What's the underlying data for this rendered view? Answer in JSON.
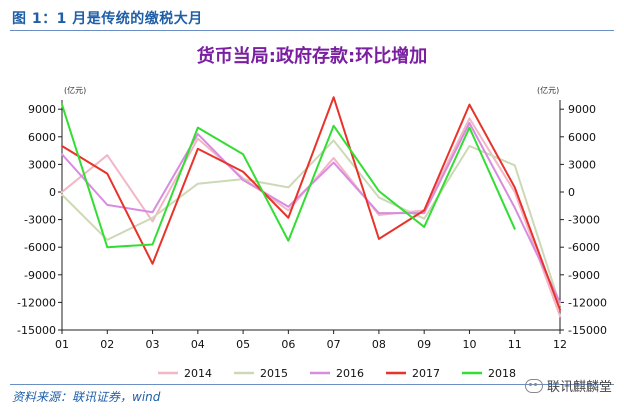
{
  "figure": {
    "caption": "图 1：1 月是传统的缴税大月",
    "source": "资料来源：联讯证券，wind",
    "watermark": "联讯麒麟堂"
  },
  "chart_data": {
    "type": "line",
    "title": "货币当局:政府存款:环比增加",
    "unit_left": "(亿元)",
    "unit_right": "(亿元)",
    "categories": [
      "01",
      "02",
      "03",
      "04",
      "05",
      "06",
      "07",
      "08",
      "09",
      "10",
      "11",
      "12"
    ],
    "y_ticks_left": [
      "9000",
      "6000",
      "3000",
      "0",
      "-3000",
      "-6000",
      "-9000",
      "-12000",
      "-15000"
    ],
    "y_ticks_right": [
      "9000",
      "6000",
      "3000",
      "0",
      "-3000",
      "-6000",
      "-9000",
      "-12000",
      "-15000"
    ],
    "ylim": [
      -15000,
      10000
    ],
    "grid": false,
    "legend_position": "bottom",
    "series": [
      {
        "name": "2014",
        "color": "#f2b6c6",
        "values": [
          0,
          4000,
          -3200,
          5800,
          1500,
          -2000,
          3700,
          -2500,
          -2000,
          8000,
          0,
          -13500
        ]
      },
      {
        "name": "2015",
        "color": "#cdd9b6",
        "values": [
          -300,
          -5200,
          -2800,
          900,
          1400,
          500,
          5600,
          -600,
          -2900,
          5000,
          2900,
          -12300
        ]
      },
      {
        "name": "2016",
        "color": "#d98be0",
        "values": [
          4100,
          -1400,
          -2200,
          6300,
          1300,
          -1600,
          3200,
          -2300,
          -2300,
          7500,
          -1700,
          -12000
        ]
      },
      {
        "name": "2017",
        "color": "#e8332a",
        "values": [
          5000,
          2000,
          -7800,
          4700,
          2200,
          -2800,
          10300,
          -5100,
          -2000,
          9500,
          500,
          -12800
        ]
      },
      {
        "name": "2018",
        "color": "#33dd33",
        "values": [
          9500,
          -6000,
          -5700,
          7000,
          4100,
          -5300,
          7200,
          100,
          -3800,
          7000,
          -4000,
          null
        ]
      }
    ]
  }
}
